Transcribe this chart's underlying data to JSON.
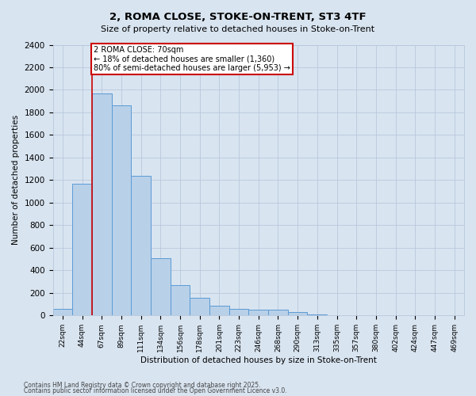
{
  "title1": "2, ROMA CLOSE, STOKE-ON-TRENT, ST3 4TF",
  "title2": "Size of property relative to detached houses in Stoke-on-Trent",
  "xlabel": "Distribution of detached houses by size in Stoke-on-Trent",
  "ylabel": "Number of detached properties",
  "categories": [
    "22sqm",
    "44sqm",
    "67sqm",
    "89sqm",
    "111sqm",
    "134sqm",
    "156sqm",
    "178sqm",
    "201sqm",
    "223sqm",
    "246sqm",
    "268sqm",
    "290sqm",
    "313sqm",
    "335sqm",
    "357sqm",
    "380sqm",
    "402sqm",
    "424sqm",
    "447sqm",
    "469sqm"
  ],
  "values": [
    60,
    1170,
    1970,
    1860,
    1240,
    510,
    270,
    160,
    90,
    60,
    55,
    50,
    30,
    10,
    5,
    3,
    2,
    1,
    1,
    0,
    0
  ],
  "bar_color": "#b8d0e8",
  "bar_edge_color": "#5b9bd5",
  "grid_color": "#b8c8dc",
  "background_color": "#d8e4f0",
  "red_line_index": 1.5,
  "annotation_text": "2 ROMA CLOSE: 70sqm\n← 18% of detached houses are smaller (1,360)\n80% of semi-detached houses are larger (5,953) →",
  "annotation_box_color": "#ffffff",
  "annotation_border_color": "#cc0000",
  "property_line_color": "#cc0000",
  "ylim": [
    0,
    2400
  ],
  "yticks": [
    0,
    200,
    400,
    600,
    800,
    1000,
    1200,
    1400,
    1600,
    1800,
    2000,
    2200,
    2400
  ],
  "footnote1": "Contains HM Land Registry data © Crown copyright and database right 2025.",
  "footnote2": "Contains public sector information licensed under the Open Government Licence v3.0."
}
